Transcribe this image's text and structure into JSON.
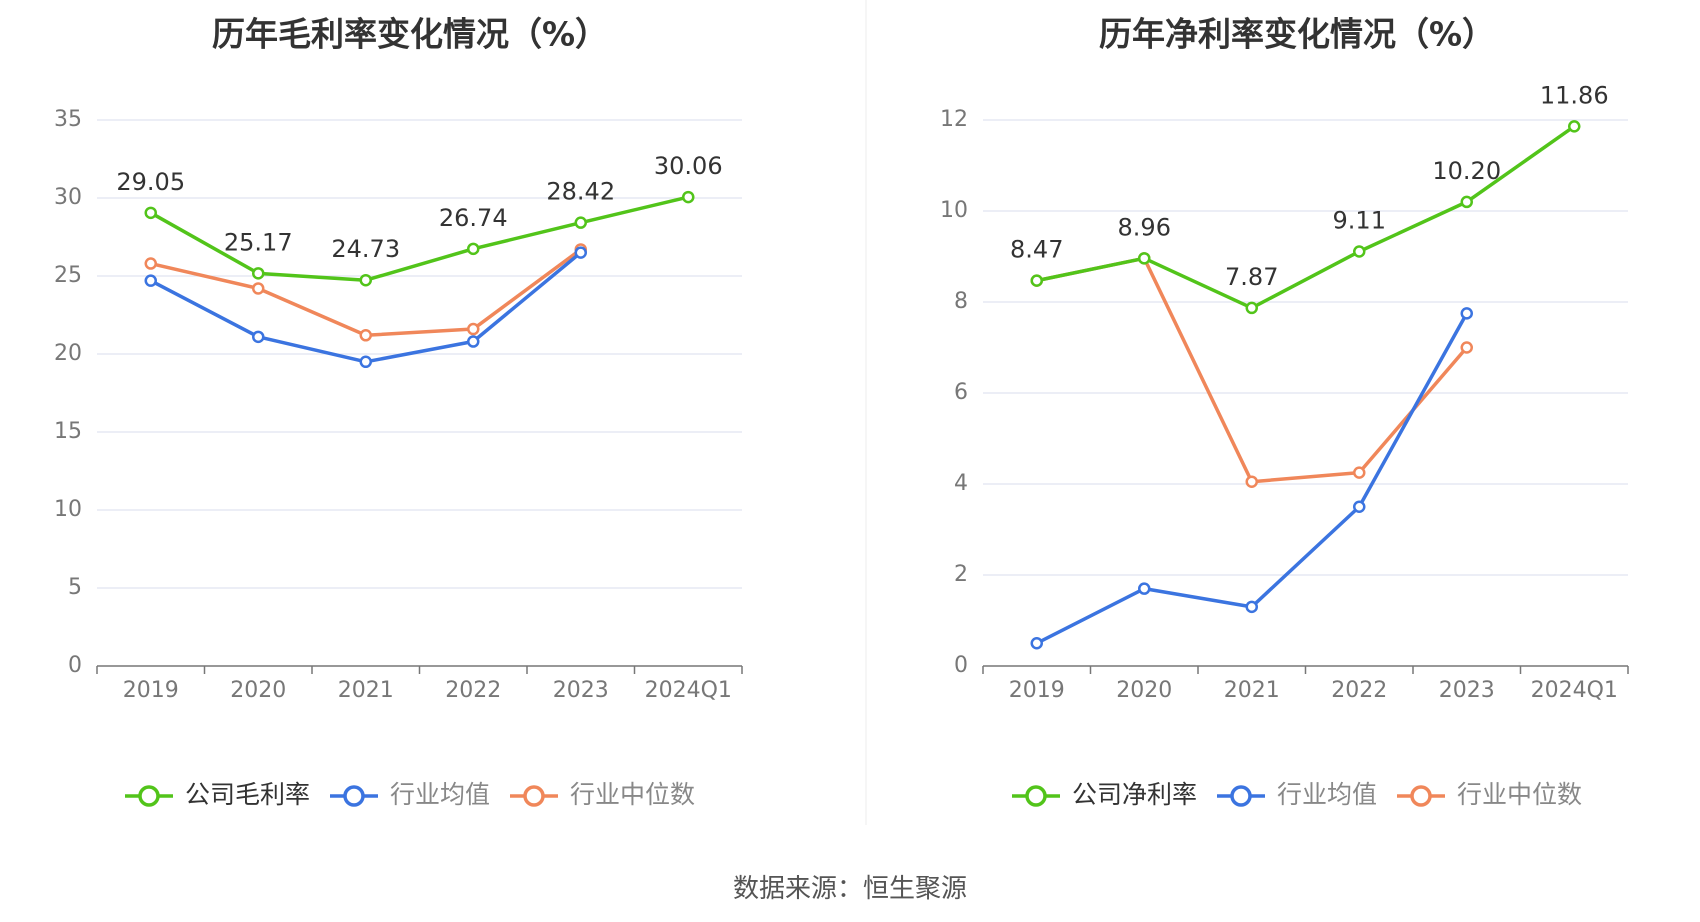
{
  "source": "数据来源：恒生聚源",
  "colors": {
    "company": "#52c41a",
    "industry_avg": "#3b74e0",
    "industry_median": "#f0875a",
    "grid": "#e0e4f0",
    "axis": "#777777",
    "tick_text": "#777777",
    "title_text": "#333333"
  },
  "chart_data": [
    {
      "type": "line",
      "title": "历年毛利率变化情况（%）",
      "categories": [
        "2019",
        "2020",
        "2021",
        "2022",
        "2023",
        "2024Q1"
      ],
      "ylim": [
        0,
        35
      ],
      "yticks": [
        0,
        5,
        10,
        15,
        20,
        25,
        30,
        35
      ],
      "grid": true,
      "legend_position": "bottom",
      "series": [
        {
          "name": "公司毛利率",
          "role": "company",
          "values": [
            29.05,
            25.17,
            24.73,
            26.74,
            28.42,
            30.06
          ],
          "labels": [
            "29.05",
            "25.17",
            "24.73",
            "26.74",
            "28.42",
            "30.06"
          ]
        },
        {
          "name": "行业均值",
          "role": "industry_avg",
          "values": [
            24.7,
            21.1,
            19.5,
            20.8,
            26.5,
            null
          ]
        },
        {
          "name": "行业中位数",
          "role": "industry_median",
          "values": [
            25.8,
            24.2,
            21.2,
            21.6,
            26.7,
            null
          ]
        }
      ]
    },
    {
      "type": "line",
      "title": "历年净利率变化情况（%）",
      "categories": [
        "2019",
        "2020",
        "2021",
        "2022",
        "2023",
        "2024Q1"
      ],
      "ylim": [
        0,
        12
      ],
      "yticks": [
        0,
        2,
        4,
        6,
        8,
        10,
        12
      ],
      "grid": true,
      "legend_position": "bottom",
      "series": [
        {
          "name": "公司净利率",
          "role": "company",
          "values": [
            8.47,
            8.96,
            7.87,
            9.11,
            10.2,
            11.86
          ],
          "labels": [
            "8.47",
            "8.96",
            "7.87",
            "9.11",
            "10.20",
            "11.86"
          ]
        },
        {
          "name": "行业均值",
          "role": "industry_avg",
          "values": [
            0.5,
            1.7,
            1.3,
            3.5,
            7.75,
            null
          ]
        },
        {
          "name": "行业中位数",
          "role": "industry_median",
          "values": [
            8.47,
            8.96,
            4.05,
            4.25,
            7.0,
            null
          ]
        }
      ]
    }
  ]
}
